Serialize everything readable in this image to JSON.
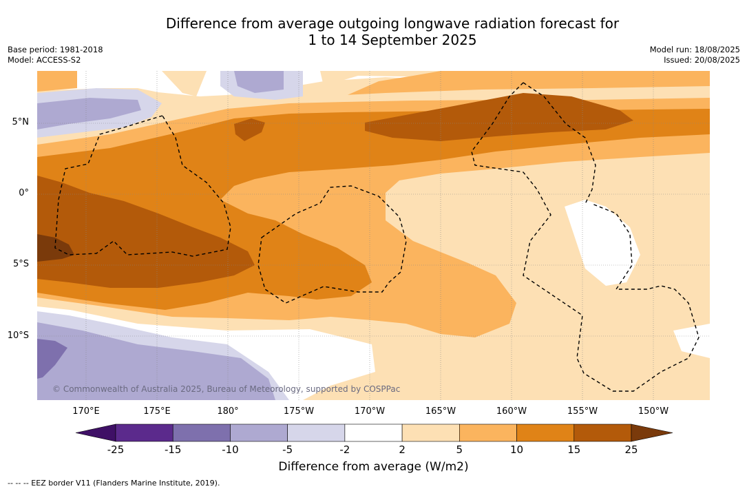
{
  "title": {
    "line1": "Difference from average outgoing longwave radiation forecast for",
    "line2": "1 to 14 September 2025"
  },
  "meta_left": {
    "base_period": "Base period: 1981-2018",
    "model": "Model: ACCESS-S2"
  },
  "meta_right": {
    "model_run": "Model run: 18/08/2025",
    "issued": "Issued: 20/08/2025"
  },
  "map": {
    "longitude_labels": [
      "170°E",
      "175°E",
      "180°",
      "175°W",
      "170°W",
      "165°W",
      "160°W",
      "155°W",
      "150°W"
    ],
    "latitude_labels": [
      "5°N",
      "0°",
      "5°S",
      "10°S"
    ],
    "copyright": "© Commonwealth of Australia 2025, Bureau of Meteorology, supported by COSPPac"
  },
  "colorbar": {
    "ticks": [
      "-25",
      "-15",
      "-10",
      "-5",
      "-2",
      "2",
      "5",
      "10",
      "15",
      "25"
    ],
    "colors": [
      "#3f1066",
      "#5b2a8c",
      "#7e70ad",
      "#aea9d1",
      "#d6d6ea",
      "#ffffff",
      "#fde0b4",
      "#fbb45e",
      "#e08317",
      "#b35a0a",
      "#7a3a0b"
    ],
    "label": "Difference from average (W/m2)"
  },
  "footnote": "--  --  -- EEZ border V11 (Flanders Marine Institute, 2019)."
}
